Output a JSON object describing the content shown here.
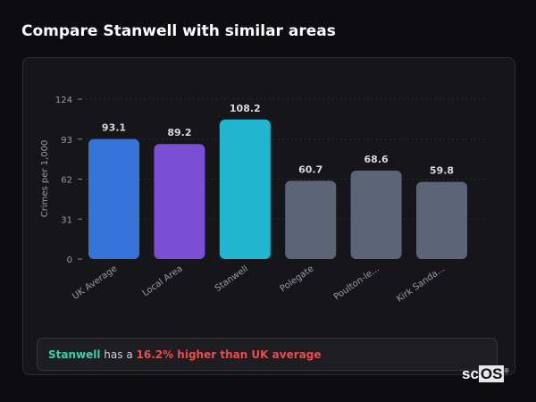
{
  "title": "Compare Stanwell with similar areas",
  "chart_data": {
    "type": "bar",
    "categories": [
      "UK Average",
      "Local Area",
      "Stanwell",
      "Polegate",
      "Poulton-le...",
      "Kirk Sanda..."
    ],
    "values": [
      93.1,
      89.2,
      108.2,
      60.7,
      68.6,
      59.8
    ],
    "data_labels": [
      "93.1",
      "89.2",
      "108.2",
      "60.7",
      "68.6",
      "59.8"
    ],
    "colors": [
      "#3573d9",
      "#7a4fd6",
      "#20b6cf",
      "#5b6577",
      "#5b6577",
      "#5b6577"
    ],
    "ylabel": "Crimes per 1,000",
    "yticks": [
      0,
      31,
      62,
      93,
      124
    ],
    "ylim": [
      0,
      124
    ],
    "grid": true
  },
  "summary": {
    "area": "Stanwell",
    "middle": " has a ",
    "comparison": "16.2% higher than UK average"
  },
  "logo": {
    "text_a": "sc",
    "text_b": "OS",
    "mark": "®"
  }
}
